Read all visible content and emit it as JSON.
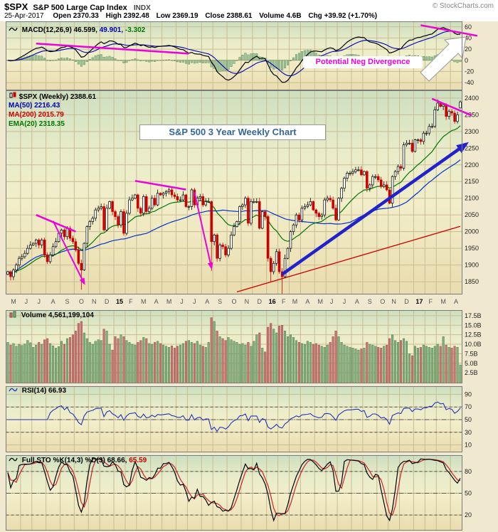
{
  "header": {
    "symbol": "$SPX",
    "name": "S&P 500 Large Cap Index",
    "exchange": "INDX",
    "copyright": "© StockCharts.com",
    "date": "25-Apr-2017",
    "quote": [
      {
        "label": "Open",
        "value": "2370.33"
      },
      {
        "label": "High",
        "value": "2392.48"
      },
      {
        "label": "Low",
        "value": "2369.19"
      },
      {
        "label": "Close",
        "value": "2388.61"
      },
      {
        "label": "Volume",
        "value": "4.6B"
      },
      {
        "label": "Chg",
        "value": "+39.92 (+1.70%)"
      }
    ]
  },
  "panels": {
    "macd": {
      "label": "MACD(12,26,9) 46.599,",
      "signal": "49.901,",
      "hist": "-3.302"
    },
    "price": {
      "symbol": "$SPX (Weekly) 2388.61",
      "ma50": "MA(50) 2216.43",
      "ma200": "MA(200) 2015.79",
      "ema20": "EMA(20) 2318.35"
    },
    "volume": {
      "label": "Volume 4,561,199,104"
    },
    "rsi": {
      "label": "RSI(14) 66.93"
    },
    "sto": {
      "label": "Full STO %K(14,3) %D(3) 68.66,",
      "d": "65.59"
    }
  },
  "annotations": {
    "chart_label": "S&P 500 3 Year Weekly Chart",
    "neg_divergence": "Potential Neg Divergence",
    "price_trendlines": [
      [
        10,
        2050,
        24,
        2000
      ],
      [
        45,
        2152,
        63,
        2126
      ],
      [
        150,
        2398,
        164,
        2348
      ]
    ],
    "price_arrows": [
      [
        16,
        2032,
        27,
        1845
      ],
      [
        66,
        2118,
        72,
        1892
      ]
    ],
    "blue_arrow": [
      97,
      1872,
      162,
      2262
    ],
    "macd_trendlines": [
      [
        10,
        30,
        64,
        12
      ],
      [
        146,
        63,
        166,
        44
      ]
    ]
  },
  "colors": {
    "magenta": "#ee00dd",
    "blue_arrow": "#2222cc",
    "ma50": "#0033cc",
    "ma200": "#cc0000",
    "ema20": "#007700",
    "macd_line": "#000000",
    "signal_line": "#0000bb",
    "hist_fill": "#9cc69c",
    "rsi_line": "#2233bb",
    "sto_k": "#000000",
    "sto_d": "#cc2222",
    "vol_up": "#7fae7f",
    "vol_down": "#c77474",
    "candle_up": "#000000",
    "candle_down": "#cc0000",
    "label_blue": "#336699"
  },
  "axis": {
    "months": [
      {
        "l": "M",
        "w": 5
      },
      {
        "l": "J",
        "w": 4
      },
      {
        "l": "J",
        "w": 5
      },
      {
        "l": "A",
        "w": 5
      },
      {
        "l": "S",
        "w": 5
      },
      {
        "l": "O",
        "w": 5
      },
      {
        "l": "N",
        "w": 4
      },
      {
        "l": "D",
        "w": 5
      },
      {
        "l": "15",
        "w": 4,
        "y": true
      },
      {
        "l": "F",
        "w": 4
      },
      {
        "l": "M",
        "w": 5
      },
      {
        "l": "A",
        "w": 4
      },
      {
        "l": "M",
        "w": 5
      },
      {
        "l": "J",
        "w": 4
      },
      {
        "l": "J",
        "w": 5
      },
      {
        "l": "A",
        "w": 4
      },
      {
        "l": "S",
        "w": 5
      },
      {
        "l": "O",
        "w": 5
      },
      {
        "l": "N",
        "w": 4
      },
      {
        "l": "D",
        "w": 5
      },
      {
        "l": "16",
        "w": 4,
        "y": true
      },
      {
        "l": "F",
        "w": 4
      },
      {
        "l": "M",
        "w": 4
      },
      {
        "l": "A",
        "w": 5
      },
      {
        "l": "M",
        "w": 4
      },
      {
        "l": "J",
        "w": 4
      },
      {
        "l": "J",
        "w": 5
      },
      {
        "l": "A",
        "w": 4
      },
      {
        "l": "S",
        "w": 5
      },
      {
        "l": "O",
        "w": 4
      },
      {
        "l": "N",
        "w": 4
      },
      {
        "l": "D",
        "w": 5
      },
      {
        "l": "17",
        "w": 4,
        "y": true
      },
      {
        "l": "F",
        "w": 4
      },
      {
        "l": "M",
        "w": 5
      },
      {
        "l": "A",
        "w": 4
      }
    ]
  },
  "chart_data": [
    {
      "type": "candlestick",
      "name": "$SPX weekly price, May 2014 - Apr 2017",
      "ylim": [
        1815,
        2420
      ],
      "yticks": [
        2400,
        2350,
        2300,
        2250,
        2200,
        2150,
        2100,
        2050,
        2000,
        1950,
        1900,
        1850
      ],
      "ma200_line": [
        1618,
        2015.79
      ],
      "last_bar": {
        "open": 2370.33,
        "high": 2392.48,
        "low": 2369.19,
        "close": 2388.61
      },
      "extra_wicks": {
        "26": 55,
        "72": 85,
        "93": 20,
        "97": 48
      },
      "closes": [
        1880,
        1865,
        1885,
        1900,
        1920,
        1925,
        1935,
        1950,
        1960,
        1965,
        1975,
        1960,
        1975,
        1930,
        1910,
        1930,
        1955,
        1970,
        1995,
        2005,
        1985,
        2010,
        1980,
        1970,
        1945,
        1905,
        1885,
        1965,
        2015,
        2030,
        2040,
        2065,
        2070,
        2075,
        2005,
        2070,
        2090,
        2060,
        2045,
        2020,
        2060,
        1995,
        2055,
        2095,
        2100,
        2110,
        2070,
        2055,
        2105,
        2060,
        2070,
        2100,
        2080,
        2115,
        2110,
        2115,
        2120,
        2125,
        2110,
        2105,
        2095,
        2095,
        2110,
        2075,
        2075,
        2125,
        2080,
        2100,
        2105,
        2080,
        2090,
        2090,
        1970,
        1990,
        1920,
        1960,
        1955,
        1930,
        1950,
        1990,
        2015,
        2030,
        2075,
        2080,
        2100,
        2025,
        2090,
        2090,
        2090,
        2010,
        2060,
        2045,
        1920,
        1880,
        1905,
        1940,
        1880,
        1865,
        1920,
        1950,
        2000,
        2020,
        2050,
        2035,
        2070,
        2075,
        2080,
        2090,
        2065,
        2055,
        2045,
        2050,
        2095,
        2100,
        2095,
        2070,
        2035,
        2100,
        2130,
        2160,
        2175,
        2175,
        2180,
        2185,
        2185,
        2170,
        2180,
        2130,
        2140,
        2165,
        2165,
        2155,
        2135,
        2140,
        2125,
        2085,
        2165,
        2180,
        2195,
        2190,
        2260,
        2265,
        2265,
        2240,
        2275,
        2275,
        2270,
        2295,
        2295,
        2315,
        2315,
        2365,
        2385,
        2375,
        2380,
        2345,
        2360,
        2355,
        2330,
        2350,
        2388.61
      ]
    },
    {
      "type": "line",
      "name": "MACD(12,26,9)",
      "params": [
        12,
        26,
        9
      ],
      "current": {
        "macd": 46.599,
        "signal": 49.901,
        "hist": -3.302
      },
      "ylim": [
        -52,
        68
      ],
      "yticks": [
        60,
        40,
        20,
        0,
        -20,
        -40
      ],
      "derived_from": "closes"
    },
    {
      "type": "bar",
      "name": "Volume",
      "current": "4,561,199,104",
      "unit": "billions of shares",
      "ylim": [
        0,
        18.7
      ],
      "yticks": [
        "17.5B",
        "15.0B",
        "12.5B",
        "10.0B",
        "7.5B",
        "5.0B",
        "2.5B"
      ],
      "values": [
        10.5,
        9.8,
        10.2,
        9.5,
        10.0,
        9.7,
        10.1,
        11.0,
        10.4,
        9.2,
        9.8,
        10.5,
        10.0,
        11.2,
        11.5,
        10.2,
        9.6,
        9.0,
        9.4,
        10.8,
        10.0,
        11.5,
        11.8,
        12.5,
        13.5,
        15.5,
        16.0,
        13.0,
        11.5,
        10.5,
        10.0,
        10.8,
        11.2,
        11.0,
        14.0,
        13.5,
        10.0,
        8.5,
        12.0,
        11.5,
        12.5,
        12.0,
        11.0,
        10.5,
        10.0,
        9.8,
        10.5,
        11.0,
        11.8,
        11.5,
        10.2,
        10.0,
        10.5,
        10.8,
        10.2,
        9.8,
        9.5,
        9.2,
        9.6,
        9.0,
        9.5,
        9.8,
        10.2,
        10.8,
        11.0,
        10.5,
        10.2,
        10.8,
        9.8,
        9.5,
        9.2,
        10.5,
        17.0,
        16.0,
        13.5,
        12.0,
        11.5,
        11.0,
        11.8,
        11.2,
        10.8,
        10.5,
        10.0,
        10.2,
        9.8,
        10.5,
        9.5,
        10.8,
        12.5,
        13.0,
        9.0,
        8.0,
        14.5,
        15.5,
        14.0,
        13.0,
        14.8,
        15.0,
        13.5,
        12.0,
        12.5,
        11.8,
        11.0,
        10.5,
        10.2,
        10.0,
        10.8,
        10.5,
        10.0,
        10.2,
        9.8,
        9.5,
        9.2,
        9.8,
        10.5,
        12.0,
        13.5,
        12.0,
        10.5,
        9.8,
        9.5,
        9.2,
        9.0,
        8.8,
        8.5,
        8.8,
        9.0,
        10.5,
        10.0,
        9.8,
        9.5,
        9.2,
        9.0,
        9.5,
        9.8,
        11.5,
        12.5,
        11.0,
        10.5,
        11.0,
        11.5,
        10.8,
        7.5,
        7.0,
        9.5,
        9.0,
        9.2,
        9.8,
        9.5,
        9.2,
        9.0,
        9.5,
        10.0,
        9.5,
        12.0,
        9.8,
        9.2,
        9.0,
        9.5,
        9.2,
        4.56
      ]
    },
    {
      "type": "line",
      "name": "RSI(14)",
      "current": 66.93,
      "ylim": [
        0,
        100
      ],
      "yticks": [
        90,
        70,
        50,
        30,
        10
      ],
      "bands": [
        70,
        30
      ],
      "derived_from": "closes"
    },
    {
      "type": "line",
      "name": "Full STO %K(14,3) %D(3)",
      "current": {
        "k": 68.66,
        "d": 65.59
      },
      "ylim": [
        0,
        100
      ],
      "yticks": [
        80,
        50,
        20
      ],
      "bands": [
        80,
        20
      ],
      "derived_from": "closes"
    }
  ]
}
